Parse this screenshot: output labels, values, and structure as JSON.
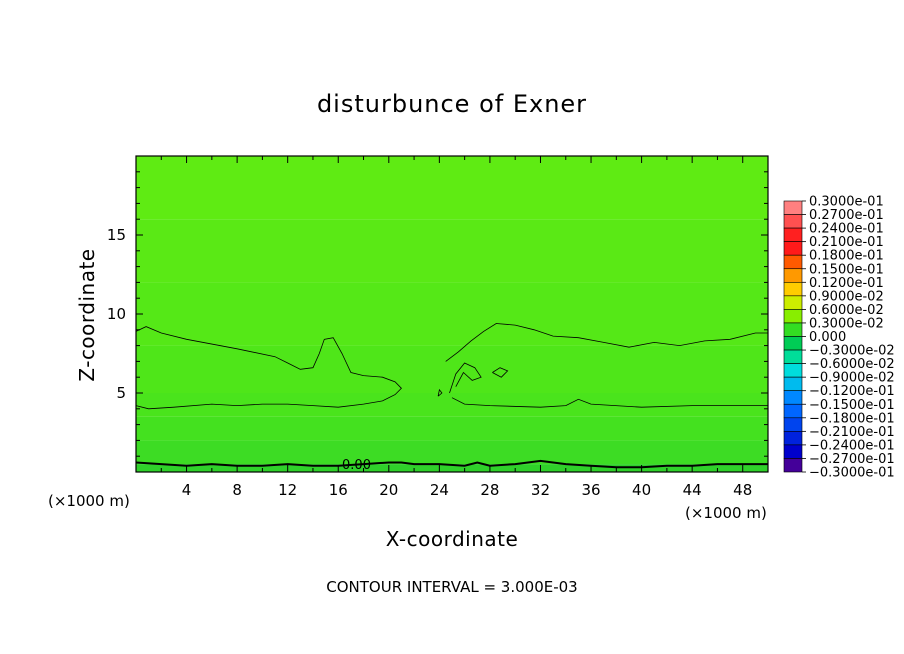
{
  "chart_data": {
    "type": "heatmap",
    "title": "disturbunce of Exner",
    "xlabel": "X-coordinate",
    "ylabel": "Z-coordinate",
    "x_unit": "(×1000 m)",
    "y_unit": "(×1000 m)",
    "xlim": [
      0,
      50
    ],
    "ylim": [
      0,
      20
    ],
    "x_ticks": [
      "4",
      "8",
      "12",
      "16",
      "20",
      "24",
      "28",
      "32",
      "36",
      "40",
      "44",
      "48"
    ],
    "y_ticks": [
      "5",
      "10",
      "15"
    ],
    "contour_labels": [
      "0.00"
    ],
    "contour_interval": "CONTOUR INTERVAL = 3.000E-03",
    "field_bands": [
      {
        "z_from": 0.0,
        "z_to": 0.5,
        "value": -0.0015,
        "color": "#2fd12a"
      },
      {
        "z_from": 0.5,
        "z_to": 2.0,
        "value": 0.0,
        "color": "#3ddc24"
      },
      {
        "z_from": 2.0,
        "z_to": 3.5,
        "value": 0.0005,
        "color": "#44e11f"
      },
      {
        "z_from": 3.5,
        "z_to": 5.0,
        "value": 0.001,
        "color": "#4ae41c"
      },
      {
        "z_from": 5.0,
        "z_to": 8.0,
        "value": 0.0015,
        "color": "#4fe619"
      },
      {
        "z_from": 8.0,
        "z_to": 12.0,
        "value": 0.0018,
        "color": "#55e817"
      },
      {
        "z_from": 12.0,
        "z_to": 16.0,
        "value": 0.002,
        "color": "#5ae915"
      },
      {
        "z_from": 16.0,
        "z_to": 20.0,
        "value": 0.0022,
        "color": "#5feb13"
      }
    ],
    "contours": [
      {
        "name": "lower",
        "points": [
          [
            0,
            4.2
          ],
          [
            1,
            4.0
          ],
          [
            3,
            4.1
          ],
          [
            6,
            4.3
          ],
          [
            8,
            4.2
          ],
          [
            10,
            4.3
          ],
          [
            12,
            4.3
          ],
          [
            14,
            4.2
          ],
          [
            16,
            4.1
          ],
          [
            18,
            4.3
          ],
          [
            19.5,
            4.5
          ],
          [
            20.5,
            4.9
          ],
          [
            21,
            5.3
          ],
          [
            20.5,
            5.7
          ],
          [
            19.5,
            6.0
          ],
          [
            18,
            6.1
          ],
          [
            17,
            6.3
          ],
          [
            16.3,
            7.5
          ],
          [
            15.6,
            8.5
          ],
          [
            14.9,
            8.4
          ],
          [
            14.5,
            7.5
          ],
          [
            14,
            6.6
          ],
          [
            13,
            6.5
          ],
          [
            12,
            6.9
          ],
          [
            11,
            7.3
          ],
          [
            8,
            7.8
          ],
          [
            4,
            8.4
          ],
          [
            2,
            8.8
          ],
          [
            0.8,
            9.2
          ],
          [
            0,
            8.9
          ]
        ]
      },
      {
        "name": "right",
        "points": [
          [
            25,
            4.7
          ],
          [
            26,
            4.3
          ],
          [
            28,
            4.2
          ],
          [
            32,
            4.1
          ],
          [
            34,
            4.2
          ],
          [
            35,
            4.6
          ],
          [
            36,
            4.3
          ],
          [
            40,
            4.1
          ],
          [
            44,
            4.2
          ],
          [
            48,
            4.2
          ],
          [
            50,
            4.2
          ]
        ]
      },
      {
        "name": "right-upper",
        "points": [
          [
            24.5,
            7.0
          ],
          [
            25.5,
            7.6
          ],
          [
            26.5,
            8.3
          ],
          [
            27.5,
            8.9
          ],
          [
            28.5,
            9.4
          ],
          [
            30,
            9.3
          ],
          [
            31.5,
            9.0
          ],
          [
            33,
            8.6
          ],
          [
            35,
            8.5
          ],
          [
            37,
            8.2
          ],
          [
            39,
            7.9
          ],
          [
            41,
            8.2
          ],
          [
            43,
            8.0
          ],
          [
            45,
            8.3
          ],
          [
            47,
            8.4
          ],
          [
            49,
            8.8
          ],
          [
            50,
            8.8
          ]
        ]
      },
      {
        "name": "right-inner",
        "points": [
          [
            24.8,
            5.0
          ],
          [
            25.3,
            6.2
          ],
          [
            26.0,
            6.9
          ],
          [
            26.8,
            6.6
          ],
          [
            27.3,
            6.0
          ],
          [
            26.6,
            5.8
          ],
          [
            25.9,
            6.3
          ],
          [
            25.3,
            5.4
          ]
        ]
      },
      {
        "name": "blob",
        "points": [
          [
            28.2,
            6.3
          ],
          [
            28.8,
            6.6
          ],
          [
            29.4,
            6.4
          ],
          [
            28.9,
            6.0
          ],
          [
            28.2,
            6.3
          ]
        ]
      },
      {
        "name": "dot",
        "points": [
          [
            23.9,
            4.8
          ],
          [
            24.2,
            5.0
          ],
          [
            24.0,
            5.2
          ],
          [
            23.9,
            4.8
          ]
        ]
      },
      {
        "name": "zero",
        "points": [
          [
            0,
            0.6
          ],
          [
            2,
            0.5
          ],
          [
            4,
            0.4
          ],
          [
            6,
            0.5
          ],
          [
            8,
            0.4
          ],
          [
            10,
            0.4
          ],
          [
            12,
            0.5
          ],
          [
            14,
            0.4
          ],
          [
            16,
            0.4
          ],
          [
            18,
            0.5
          ],
          [
            20,
            0.6
          ],
          [
            21,
            0.6
          ],
          [
            22,
            0.5
          ],
          [
            24,
            0.5
          ],
          [
            26,
            0.4
          ],
          [
            27,
            0.6
          ],
          [
            28,
            0.4
          ],
          [
            30,
            0.5
          ],
          [
            32,
            0.7
          ],
          [
            34,
            0.5
          ],
          [
            36,
            0.4
          ],
          [
            38,
            0.3
          ],
          [
            40,
            0.3
          ],
          [
            42,
            0.4
          ],
          [
            44,
            0.4
          ],
          [
            46,
            0.5
          ],
          [
            48,
            0.5
          ],
          [
            50,
            0.5
          ]
        ]
      }
    ],
    "legend": {
      "labels": [
        "0.3000e-01",
        "0.2700e-01",
        "0.2400e-01",
        "0.2100e-01",
        "0.1800e-01",
        "0.1500e-01",
        "0.1200e-01",
        "0.9000e-02",
        "0.6000e-02",
        "0.3000e-02",
        "0.000",
        "−0.3000e-02",
        "−0.6000e-02",
        "−0.9000e-02",
        "−0.1200e-01",
        "−0.1500e-01",
        "−0.1800e-01",
        "−0.2100e-01",
        "−0.2400e-01",
        "−0.2700e-01",
        "−0.3000e-01"
      ],
      "colors": [
        "#ff8080",
        "#ff5050",
        "#ff2020",
        "#ff1a1a",
        "#ff5a00",
        "#ff9900",
        "#ffcc00",
        "#ccee00",
        "#88ee00",
        "#33dd22",
        "#00cc55",
        "#00dd99",
        "#00dddd",
        "#00bbee",
        "#0088ff",
        "#0066ff",
        "#0044ee",
        "#0022dd",
        "#0000cc",
        "#440099"
      ]
    }
  }
}
